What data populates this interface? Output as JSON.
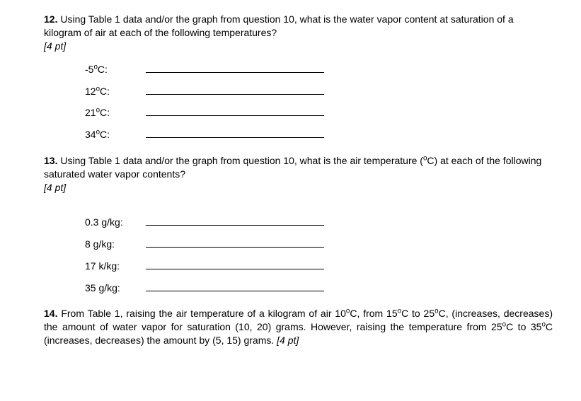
{
  "q12": {
    "number": "12.",
    "text": "Using Table 1 data and/or the graph from question 10, what is the water vapor content at saturation of a kilogram of air at each of the following temperatures?",
    "points": "[4 pt]",
    "items": [
      {
        "label": "-5°C:"
      },
      {
        "label": "12°C:"
      },
      {
        "label": "21°C:"
      },
      {
        "label": "34°C:"
      }
    ]
  },
  "q13": {
    "number": "13.",
    "text": "Using Table 1 data and/or the graph from question 10, what is the air temperature (°C) at each of the following saturated water vapor contents?",
    "points": "[4 pt]",
    "items": [
      {
        "label": "0.3 g/kg:"
      },
      {
        "label": "8 g/kg:"
      },
      {
        "label": "17 k/kg:"
      },
      {
        "label": "35 g/kg:"
      }
    ]
  },
  "q14": {
    "number": "14.",
    "text": "From Table 1, raising the air temperature of a kilogram of air 10°C, from 15°C to 25°C, (increases, decreases) the amount of water vapor for saturation (10, 20) grams. However, raising the temperature from 25°C to 35°C (increases, decreases) the amount by (5, 15) grams.",
    "points": "[4 pt]"
  }
}
